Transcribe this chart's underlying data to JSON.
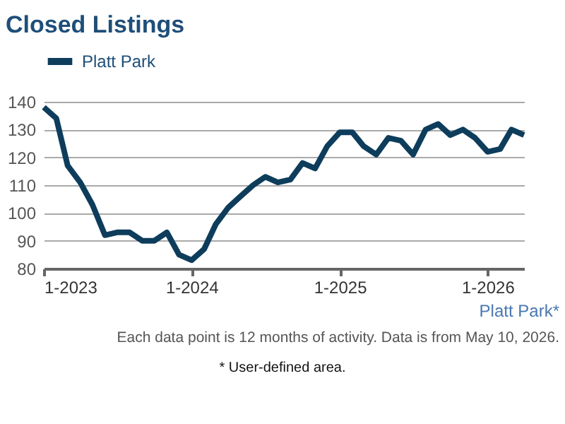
{
  "chart_data": {
    "type": "line",
    "title": "Closed Listings",
    "x": [
      "2023-01",
      "2023-02",
      "2023-03",
      "2023-04",
      "2023-05",
      "2023-06",
      "2023-07",
      "2023-08",
      "2023-09",
      "2023-10",
      "2023-11",
      "2023-12",
      "2024-01",
      "2024-02",
      "2024-03",
      "2024-04",
      "2024-05",
      "2024-06",
      "2024-07",
      "2024-08",
      "2024-09",
      "2024-10",
      "2024-11",
      "2024-12",
      "2025-01",
      "2025-02",
      "2025-03",
      "2025-04",
      "2025-05",
      "2025-06",
      "2025-07",
      "2025-08",
      "2025-09",
      "2025-10",
      "2025-11",
      "2025-12",
      "2026-01",
      "2026-02",
      "2026-03",
      "2026-04"
    ],
    "series": [
      {
        "name": "Platt Park",
        "color": "#0e3d5c",
        "values": [
          138,
          134,
          117,
          111,
          103,
          92,
          93,
          93,
          90,
          90,
          93,
          85,
          83,
          87,
          96,
          102,
          106,
          110,
          113,
          111,
          112,
          118,
          116,
          124,
          129,
          129,
          124,
          121,
          127,
          126,
          121,
          130,
          132,
          128,
          130,
          127,
          122,
          123,
          130,
          128
        ]
      }
    ],
    "xlim": [
      "2023-01",
      "2026-04"
    ],
    "xticks": [
      {
        "value": "2023-01",
        "label": "1-2023"
      },
      {
        "value": "2024-01",
        "label": "1-2024"
      },
      {
        "value": "2025-01",
        "label": "1-2025"
      },
      {
        "value": "2026-01",
        "label": "1-2026"
      }
    ],
    "ylim": [
      80,
      140
    ],
    "yticks": [
      80,
      90,
      100,
      110,
      120,
      130,
      140
    ],
    "grid": "y",
    "legend": "top",
    "marker": "none",
    "line_style": "solid",
    "annotations": [
      "Platt Park*",
      "Each data point is 12 months of activity. Data is from May 10, 2026.",
      "* User-defined area."
    ]
  }
}
